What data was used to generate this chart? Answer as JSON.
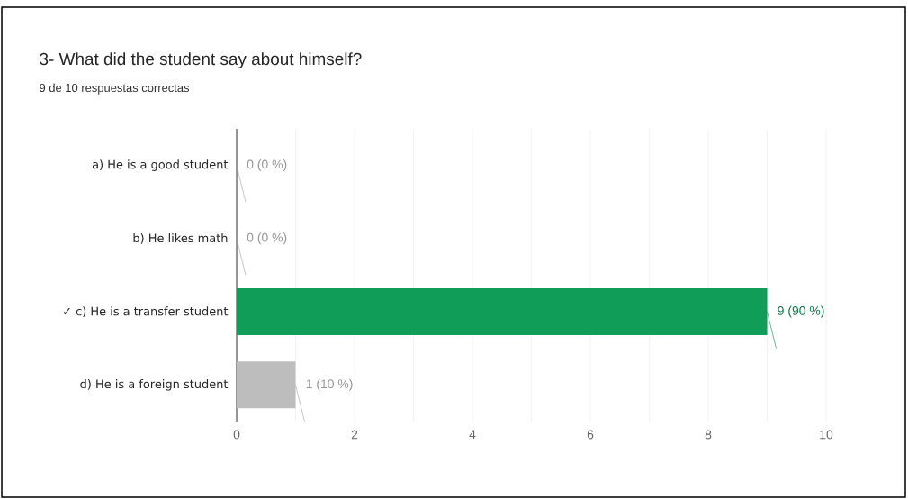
{
  "chart_data": {
    "type": "bar",
    "orientation": "horizontal",
    "title": "3- What did the student say about himself?",
    "subtitle": "9 de 10 respuestas correctas",
    "categories": [
      "a) He is a good student",
      "b) He likes math",
      "✓ c) He is a transfer student",
      "d) He is a foreign student"
    ],
    "values": [
      0,
      0,
      9,
      1
    ],
    "colors": [
      "#bdbdbd",
      "#bdbdbd",
      "#0f9d58",
      "#bdbdbd"
    ],
    "value_labels": [
      "0 (0 %)",
      "0 (0 %)",
      "9 (90 %)",
      "1 (10 %)"
    ],
    "xlim": [
      0,
      10
    ],
    "xticks": [
      0,
      {
        "value": 1,
        "label": null
      },
      2,
      {
        "value": 3,
        "label": null
      },
      4,
      {
        "value": 5,
        "label": null
      },
      6,
      {
        "value": 7,
        "label": null
      },
      8,
      {
        "value": 9,
        "label": null
      },
      10
    ],
    "grid": "x"
  }
}
